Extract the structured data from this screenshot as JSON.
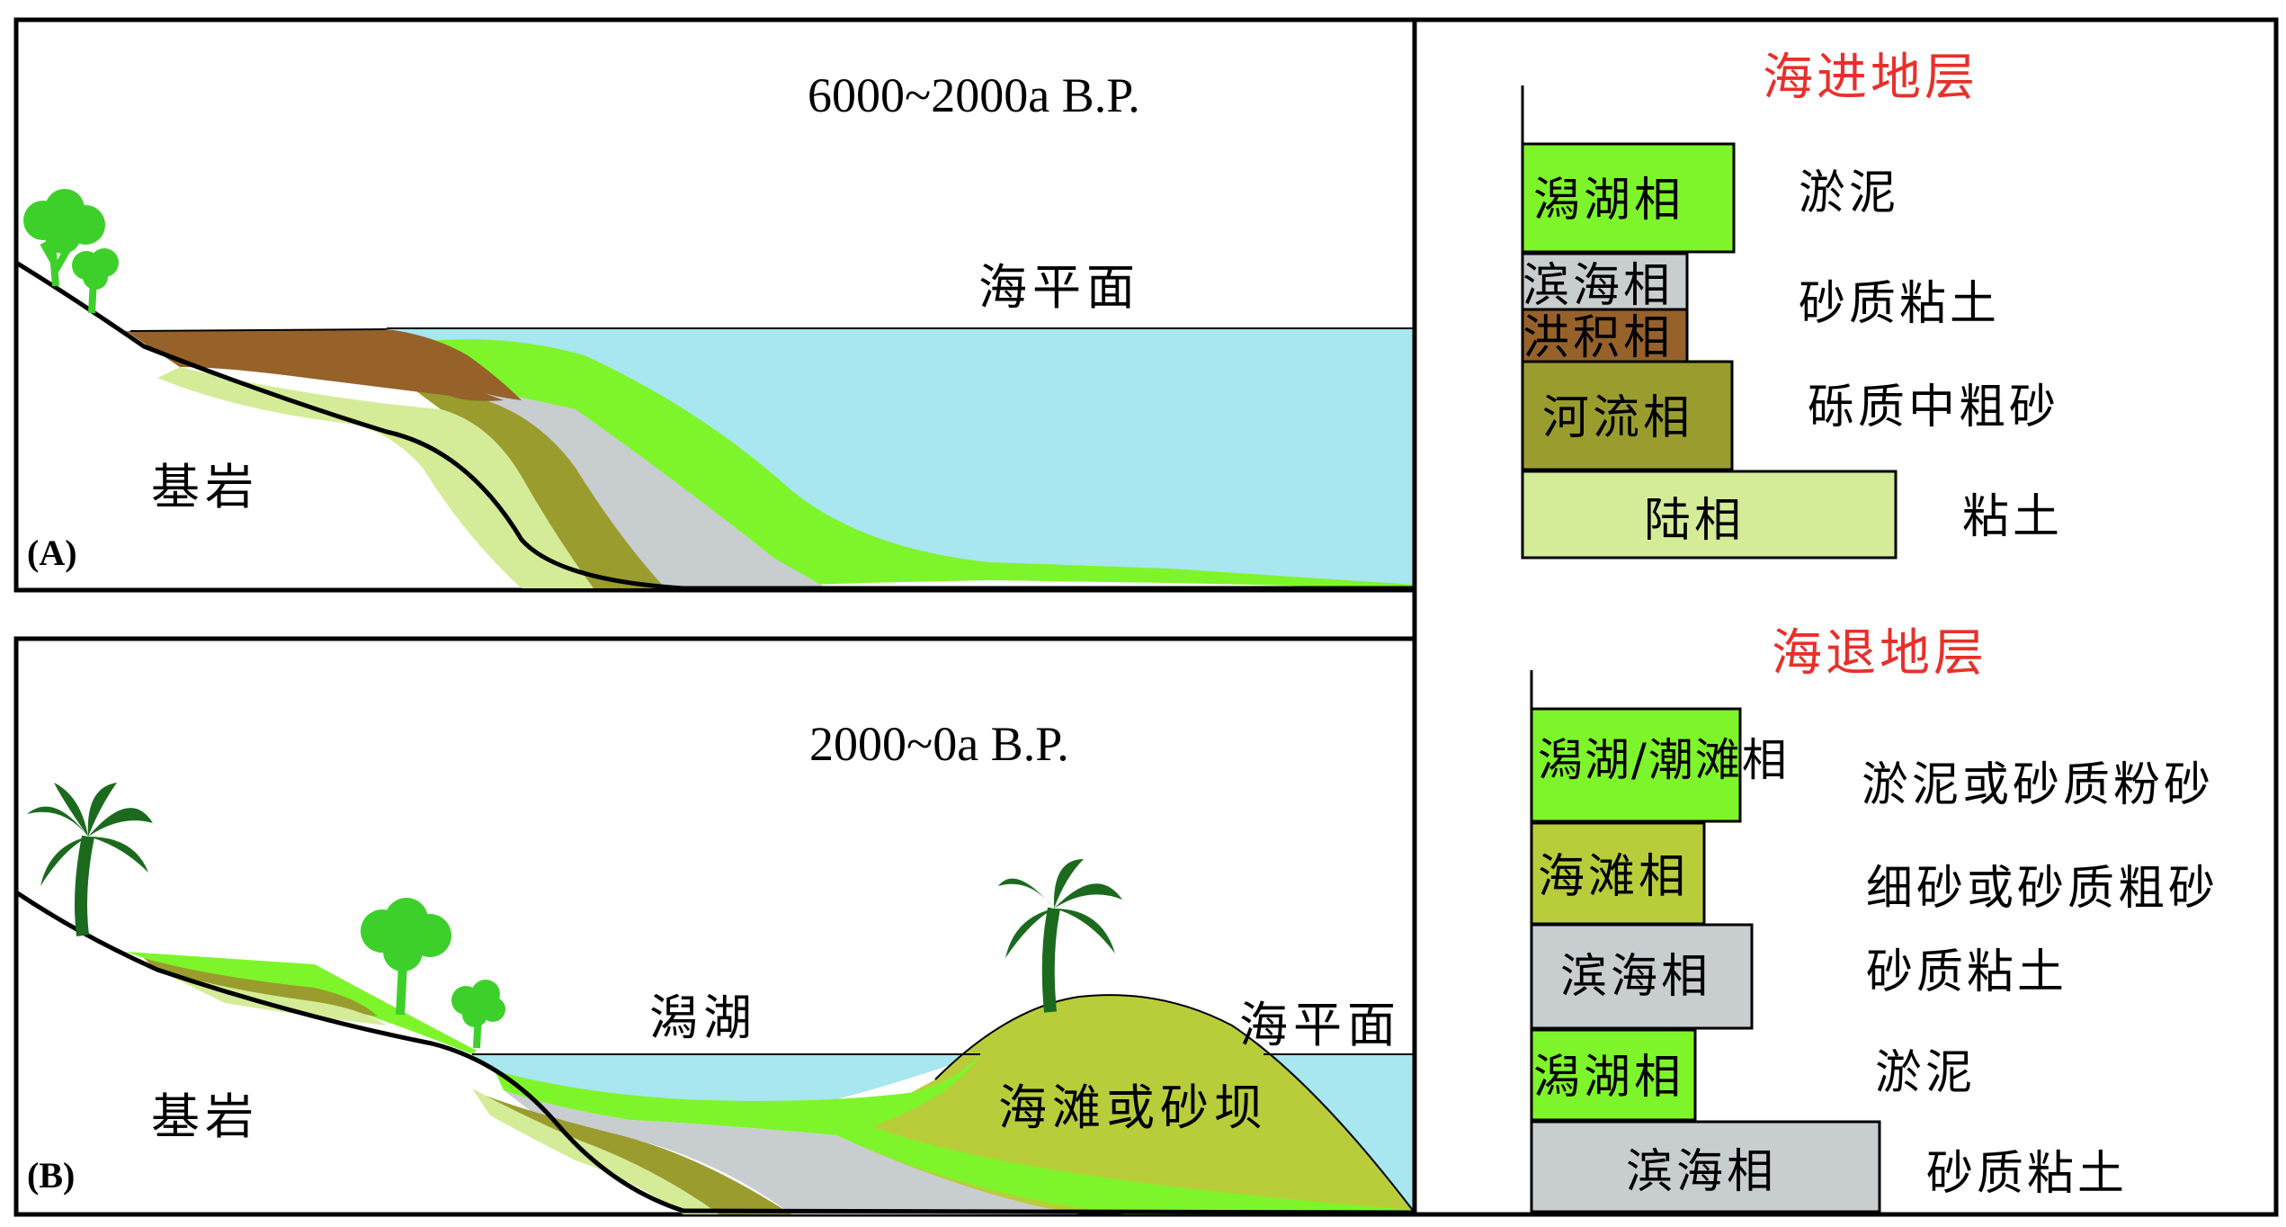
{
  "panel_a": {
    "tag": "(A)",
    "time_label": "6000~2000a B.P.",
    "sea_level_label": "海平面",
    "bedrock_label": "基岩"
  },
  "panel_b": {
    "tag": "(B)",
    "time_label": "2000~0a B.P.",
    "sea_level_label": "海平面",
    "bedrock_label": "基岩",
    "lagoon_label": "潟湖",
    "beach_label": "海滩或砂坝"
  },
  "legend_transgression": {
    "title": "海进地层",
    "layers": [
      {
        "facies": "潟湖相",
        "lithology": "淤泥",
        "color": "#7ef52a"
      },
      {
        "facies": "滨海相",
        "lithology": "",
        "color": "#c8cdd0"
      },
      {
        "facies": "洪积相",
        "lithology": "砂质粘土",
        "color": "#96622a"
      },
      {
        "facies": "河流相",
        "lithology": "砾质中粗砂",
        "color": "#9a9d2e"
      },
      {
        "facies": "陆相",
        "lithology": "粘土",
        "color": "#d4ec98"
      }
    ]
  },
  "legend_regression": {
    "title": "海退地层",
    "layers": [
      {
        "facies": "潟湖/潮滩相",
        "lithology": "淤泥或砂质粉砂",
        "color": "#7ef52a"
      },
      {
        "facies": "海滩相",
        "lithology": "细砂或砂质粗砂",
        "color": "#b9cd3a"
      },
      {
        "facies": "滨海相",
        "lithology": "砂质粘土",
        "color": "#c8cdd0"
      },
      {
        "facies": "潟湖相",
        "lithology": "淤泥",
        "color": "#7ef52a"
      },
      {
        "facies": "滨海相",
        "lithology": "砂质粘土",
        "color": "#c8cdd0"
      }
    ]
  },
  "colors": {
    "sea": "#a8e6f0",
    "lagoon_green": "#7ef52a",
    "coastal_grey": "#c8cdd0",
    "alluvial_brown": "#96622a",
    "fluvial_olive": "#9a9d2e",
    "terrestrial_pale": "#d4ec98",
    "beach_yellowgreen": "#b9cd3a",
    "title_red": "#e8302a",
    "palm_dark": "#1b6a1e",
    "tree_bright": "#3ed02a"
  }
}
